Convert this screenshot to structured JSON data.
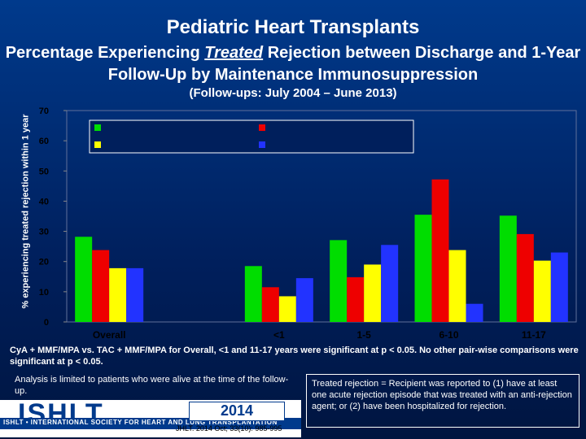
{
  "title": "Pediatric Heart Transplants",
  "subtitle_pre": "Percentage Experiencing ",
  "subtitle_em": "Treated",
  "subtitle_post": " Rejection between Discharge and 1-Year Follow-Up by Maintenance Immunosuppression",
  "period": "(Follow-ups: July 2004 – June 2013)",
  "chart_data": {
    "type": "bar",
    "ylabel": "% experiencing treated rejection within 1 year",
    "ylim": [
      0,
      70
    ],
    "yticks": [
      0,
      10,
      20,
      30,
      40,
      50,
      60,
      70
    ],
    "categories": [
      "Overall",
      "",
      "<1",
      "1-5",
      "6-10",
      "11-17"
    ],
    "series": [
      {
        "color": "#00dd00",
        "values": [
          28.2,
          null,
          18.5,
          27.1,
          35.5,
          35.2
        ]
      },
      {
        "color": "#ee0000",
        "values": [
          23.8,
          null,
          11.5,
          14.8,
          47.2,
          29.1
        ]
      },
      {
        "color": "#ffff00",
        "values": [
          17.8,
          null,
          8.5,
          19.0,
          23.8,
          20.3
        ]
      },
      {
        "color": "#2233ff",
        "values": [
          17.8,
          null,
          14.5,
          25.5,
          6.0,
          23.0
        ]
      }
    ],
    "legend": "top"
  },
  "note": "CyA + MMF/MPA vs. TAC + MMF/MPA for Overall, <1 and 11-17 years were significant at p < 0.05. No other pair-wise comparisons were significant at p < 0.05.",
  "analysis": "Analysis is limited to patients who were alive at the time of the follow-up.",
  "definition": "Treated rejection = Recipient was reported to (1) have at least one acute rejection episode that was treated with an anti-rejection agent; or (2) have been hospitalized for rejection.",
  "logo": {
    "letters": "ISHLT",
    "full": "ISHLT • INTERNATIONAL SOCIETY FOR HEART AND LUNG TRANSPLANTATION",
    "year": "2014",
    "citation": "JHLT. 2014 Oct; 33(10): 985-995"
  }
}
